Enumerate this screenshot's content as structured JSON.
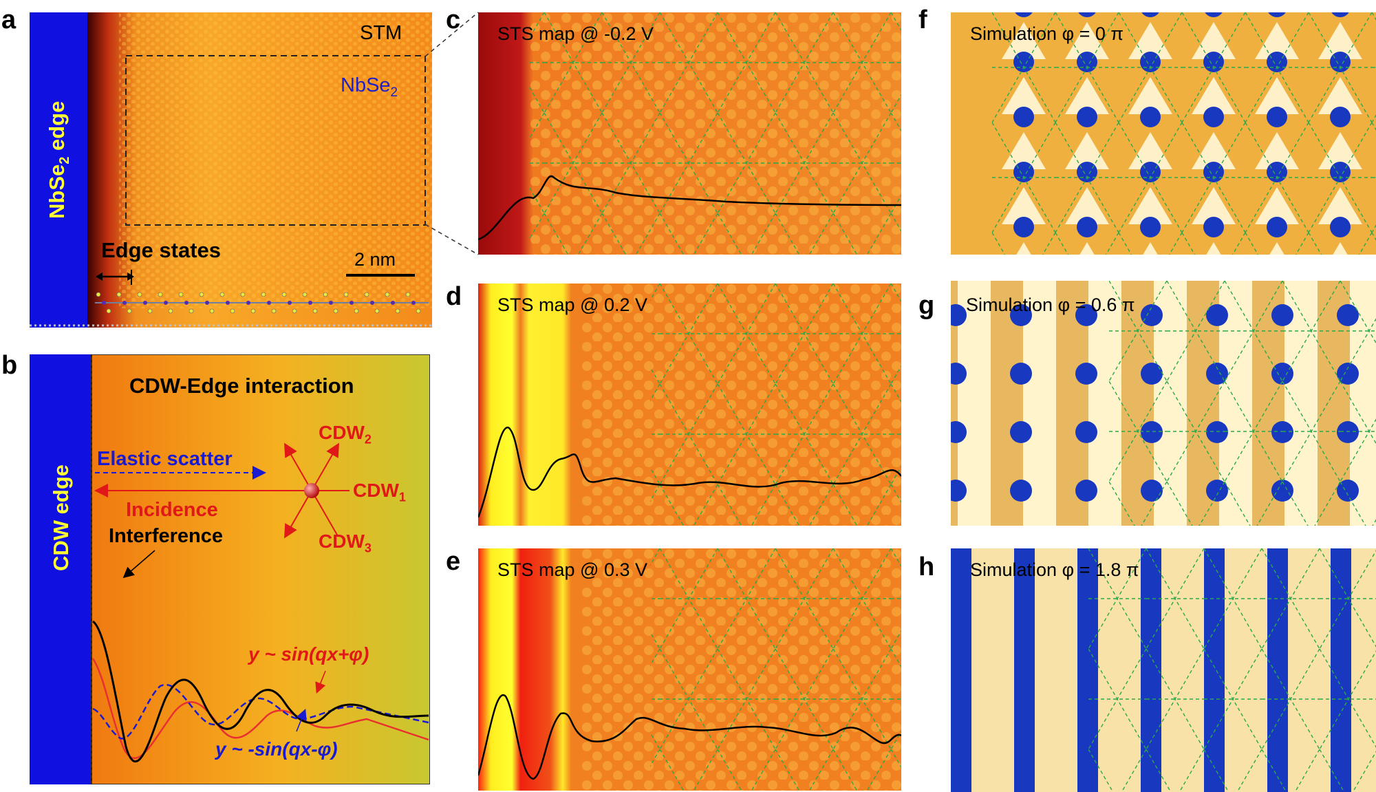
{
  "labels": {
    "a": "a",
    "b": "b",
    "c": "c",
    "d": "d",
    "e": "e",
    "f": "f",
    "g": "g",
    "h": "h"
  },
  "panel_a": {
    "edge_label_main": "NbSe",
    "edge_label_sub": "2",
    "edge_label_tail": " edge",
    "stm_label": "STM",
    "material_main": "NbSe",
    "material_sub": "2",
    "edge_states_label": "Edge states",
    "scalebar_label": "2 nm"
  },
  "panel_b": {
    "title": "CDW-Edge interaction",
    "edge_label": "CDW edge",
    "elastic_scatter": "Elastic scatter",
    "incidence": "Incidence",
    "cdw2_main": "CDW",
    "cdw2_sub": "2",
    "cdw1_main": "CDW",
    "cdw1_sub": "1",
    "cdw3_main": "CDW",
    "cdw3_sub": "3",
    "interference": "Interference",
    "eq_red": "y ~ sin(qx+φ)",
    "eq_blue": "y ~ -sin(qx-φ)"
  },
  "sts_maps": [
    {
      "id": "c",
      "label": "STS map @ -0.2 V"
    },
    {
      "id": "d",
      "label": "STS map @ 0.2 V"
    },
    {
      "id": "e",
      "label": "STS map @ 0.3 V"
    }
  ],
  "simulations": [
    {
      "id": "f",
      "label": "Simulation φ = 0 π"
    },
    {
      "id": "g",
      "label": "Simulation φ = 0.6 π"
    },
    {
      "id": "h",
      "label": "Simulation φ = 1.8 π"
    }
  ],
  "colors": {
    "edge_blue": "#1010e0",
    "surface_orange": "#f08a1a",
    "text_yellow": "#ffff33",
    "text_red": "#e01818",
    "text_blue": "#1a1ad0",
    "grid_green": "#2aa84a"
  }
}
